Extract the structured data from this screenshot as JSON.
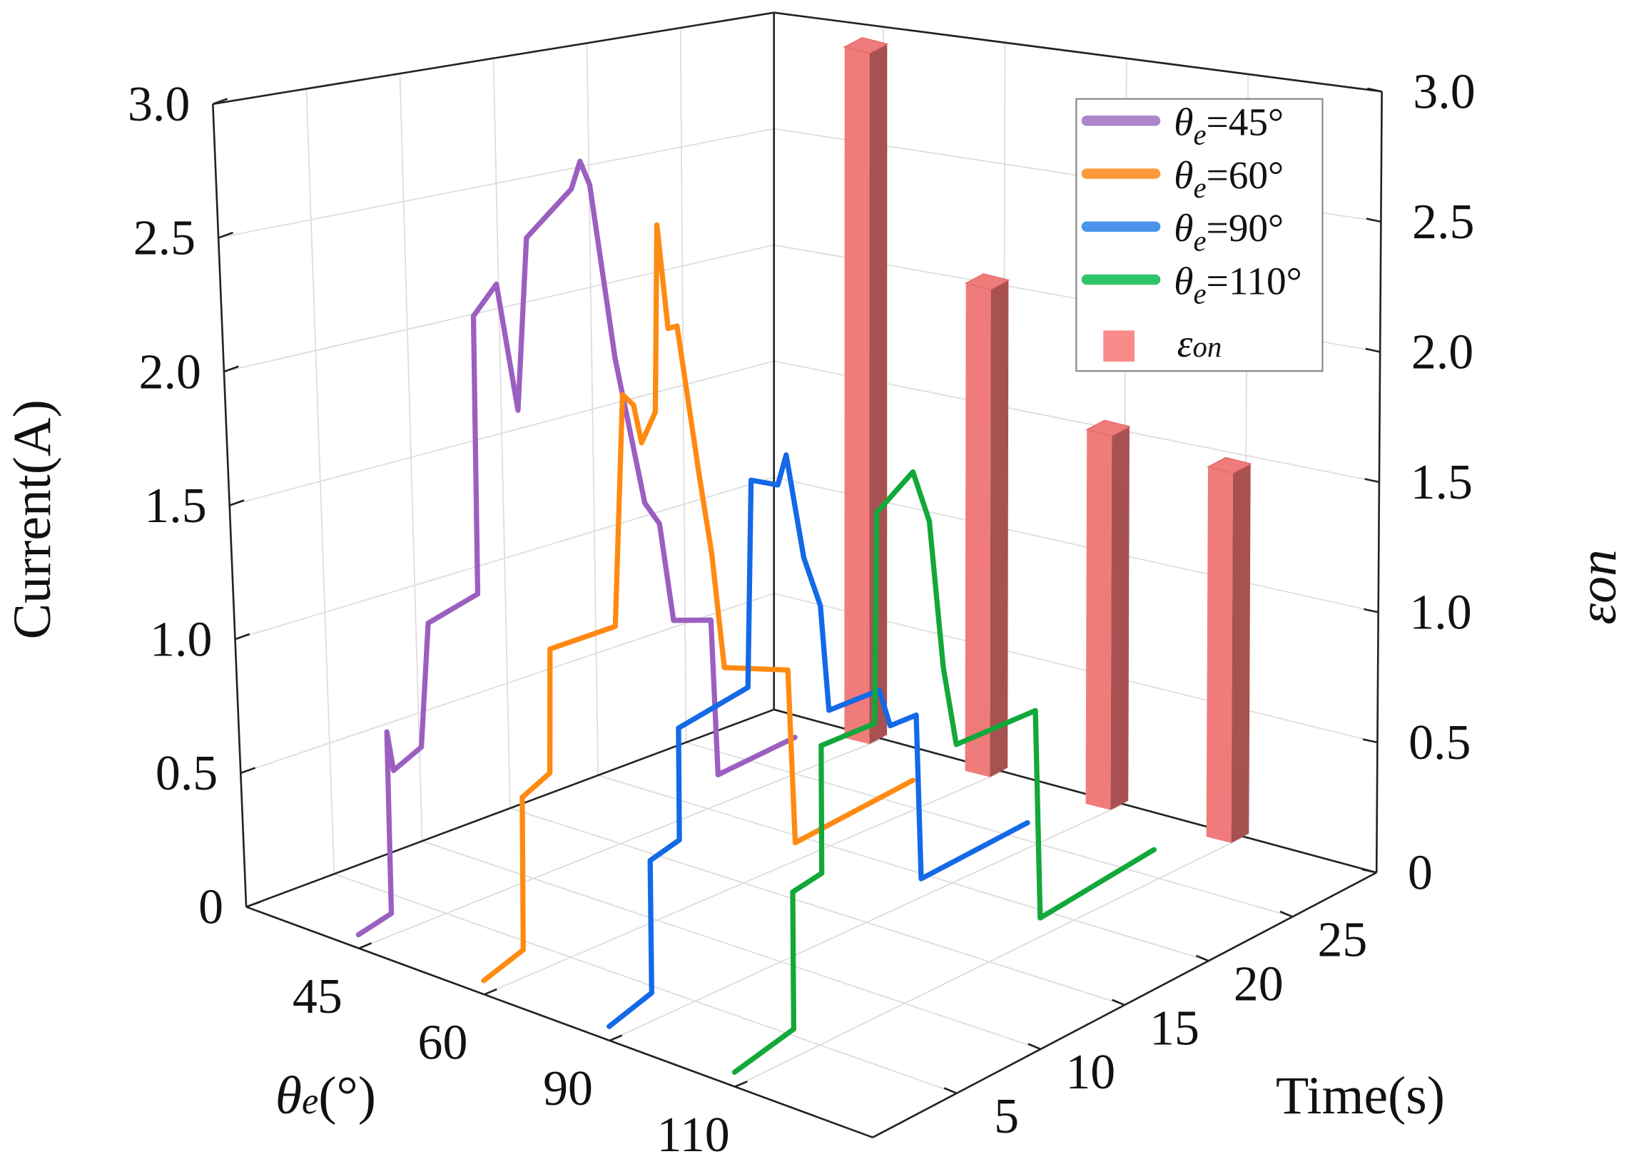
{
  "chart_data": {
    "type": "line",
    "projection": "3d",
    "zlabel": "Current(A)",
    "z2label": "εon",
    "xlabel": {
      "symbol": "θ",
      "sub": "e",
      "rest": "(°)"
    },
    "ylabel": "Time(s)",
    "theta_categories": [
      "45",
      "60",
      "90",
      "110"
    ],
    "time_ticks": [
      "5",
      "10",
      "15",
      "20",
      "25"
    ],
    "time_range": [
      0,
      30
    ],
    "z_ticks": [
      "0",
      "0.5",
      "1.0",
      "1.5",
      "2.0",
      "2.5",
      "3.0"
    ],
    "z_range": [
      0,
      3
    ],
    "z2_ticks": [
      "0",
      "0.5",
      "1.0",
      "1.5",
      "2.0",
      "2.5",
      "3.0"
    ],
    "grid": true,
    "legend_placement": "top-right",
    "series": [
      {
        "name": "θe=45°",
        "label": {
          "symbol": "θ",
          "sub": "e",
          "rest": "=45°"
        },
        "theta": "45",
        "color": "#9b5fc0",
        "legend_color": "#ab86c9",
        "points": [
          [
            0,
            0.05
          ],
          [
            1.9,
            0.08
          ],
          [
            2.0,
            0.75
          ],
          [
            2.3,
            0.6
          ],
          [
            3.9,
            0.65
          ],
          [
            4.5,
            1.1
          ],
          [
            7.3,
            1.15
          ],
          [
            7.5,
            2.2
          ],
          [
            8.8,
            2.3
          ],
          [
            9.8,
            1.8
          ],
          [
            10.5,
            2.45
          ],
          [
            13,
            2.6
          ],
          [
            13.5,
            2.7
          ],
          [
            14,
            2.6
          ],
          [
            15.2,
            1.9
          ],
          [
            16.7,
            1.3
          ],
          [
            17.5,
            1.2
          ],
          [
            18.2,
            0.8
          ],
          [
            20.3,
            0.75
          ],
          [
            20.6,
            0.12
          ],
          [
            25,
            0.15
          ]
        ]
      },
      {
        "name": "θe=60°",
        "label": {
          "symbol": "θ",
          "sub": "e",
          "rest": "=60°"
        },
        "theta": "60",
        "color": "#ff8a12",
        "legend_color": "#ff9a3c",
        "points": [
          [
            0,
            0.05
          ],
          [
            2.3,
            0.1
          ],
          [
            2.5,
            0.65
          ],
          [
            4.1,
            0.7
          ],
          [
            4.3,
            1.15
          ],
          [
            8.0,
            1.15
          ],
          [
            8.7,
            2.0
          ],
          [
            9.3,
            1.95
          ],
          [
            9.7,
            1.8
          ],
          [
            10.5,
            1.9
          ],
          [
            10.8,
            2.6
          ],
          [
            11.3,
            2.2
          ],
          [
            11.8,
            2.2
          ],
          [
            12.9,
            1.6
          ],
          [
            13.5,
            1.3
          ],
          [
            14.1,
            0.85
          ],
          [
            17.7,
            0.75
          ],
          [
            18.0,
            0.07
          ],
          [
            24.8,
            0.12
          ]
        ]
      },
      {
        "name": "θe=90°",
        "label": {
          "symbol": "θ",
          "sub": "e",
          "rest": "=90°"
        },
        "theta": "90",
        "color": "#1469e6",
        "legend_color": "#4a94ec",
        "points": [
          [
            0,
            0.05
          ],
          [
            2.5,
            0.1
          ],
          [
            2.6,
            0.57
          ],
          [
            4.3,
            0.6
          ],
          [
            4.4,
            1.0
          ],
          [
            8.4,
            1.05
          ],
          [
            8.8,
            1.8
          ],
          [
            10.3,
            1.75
          ],
          [
            10.8,
            1.85
          ],
          [
            11.7,
            1.45
          ],
          [
            12.6,
            1.25
          ],
          [
            13,
            0.85
          ],
          [
            15.9,
            0.85
          ],
          [
            16.5,
            0.7
          ],
          [
            18,
            0.7
          ],
          [
            18.2,
            0.07
          ],
          [
            24.4,
            0.1
          ]
        ]
      },
      {
        "name": "θe=110°",
        "label": {
          "symbol": "θ",
          "sub": "e",
          "rest": "=110°"
        },
        "theta": "110",
        "color": "#12a83a",
        "legend_color": "#2ec46a",
        "points": [
          [
            0,
            0.05
          ],
          [
            3.5,
            0.1
          ],
          [
            3.6,
            0.58
          ],
          [
            5.3,
            0.6
          ],
          [
            5.4,
            1.05
          ],
          [
            8.5,
            1.05
          ],
          [
            8.8,
            1.8
          ],
          [
            10.9,
            1.9
          ],
          [
            11.8,
            1.7
          ],
          [
            12.5,
            1.15
          ],
          [
            13.2,
            0.85
          ],
          [
            17.8,
            0.85
          ],
          [
            18,
            0.07
          ],
          [
            24.7,
            0.12
          ]
        ]
      }
    ],
    "bars": {
      "name": "εon",
      "label": {
        "symbol": "ε",
        "sub": "on"
      },
      "color": "#f07b7b",
      "side_color": "#a85151",
      "legend_color": "#f98a8a",
      "theta": [
        "45",
        "60",
        "90",
        "110"
      ],
      "values": [
        2.9,
        2.0,
        1.5,
        1.45
      ]
    }
  }
}
